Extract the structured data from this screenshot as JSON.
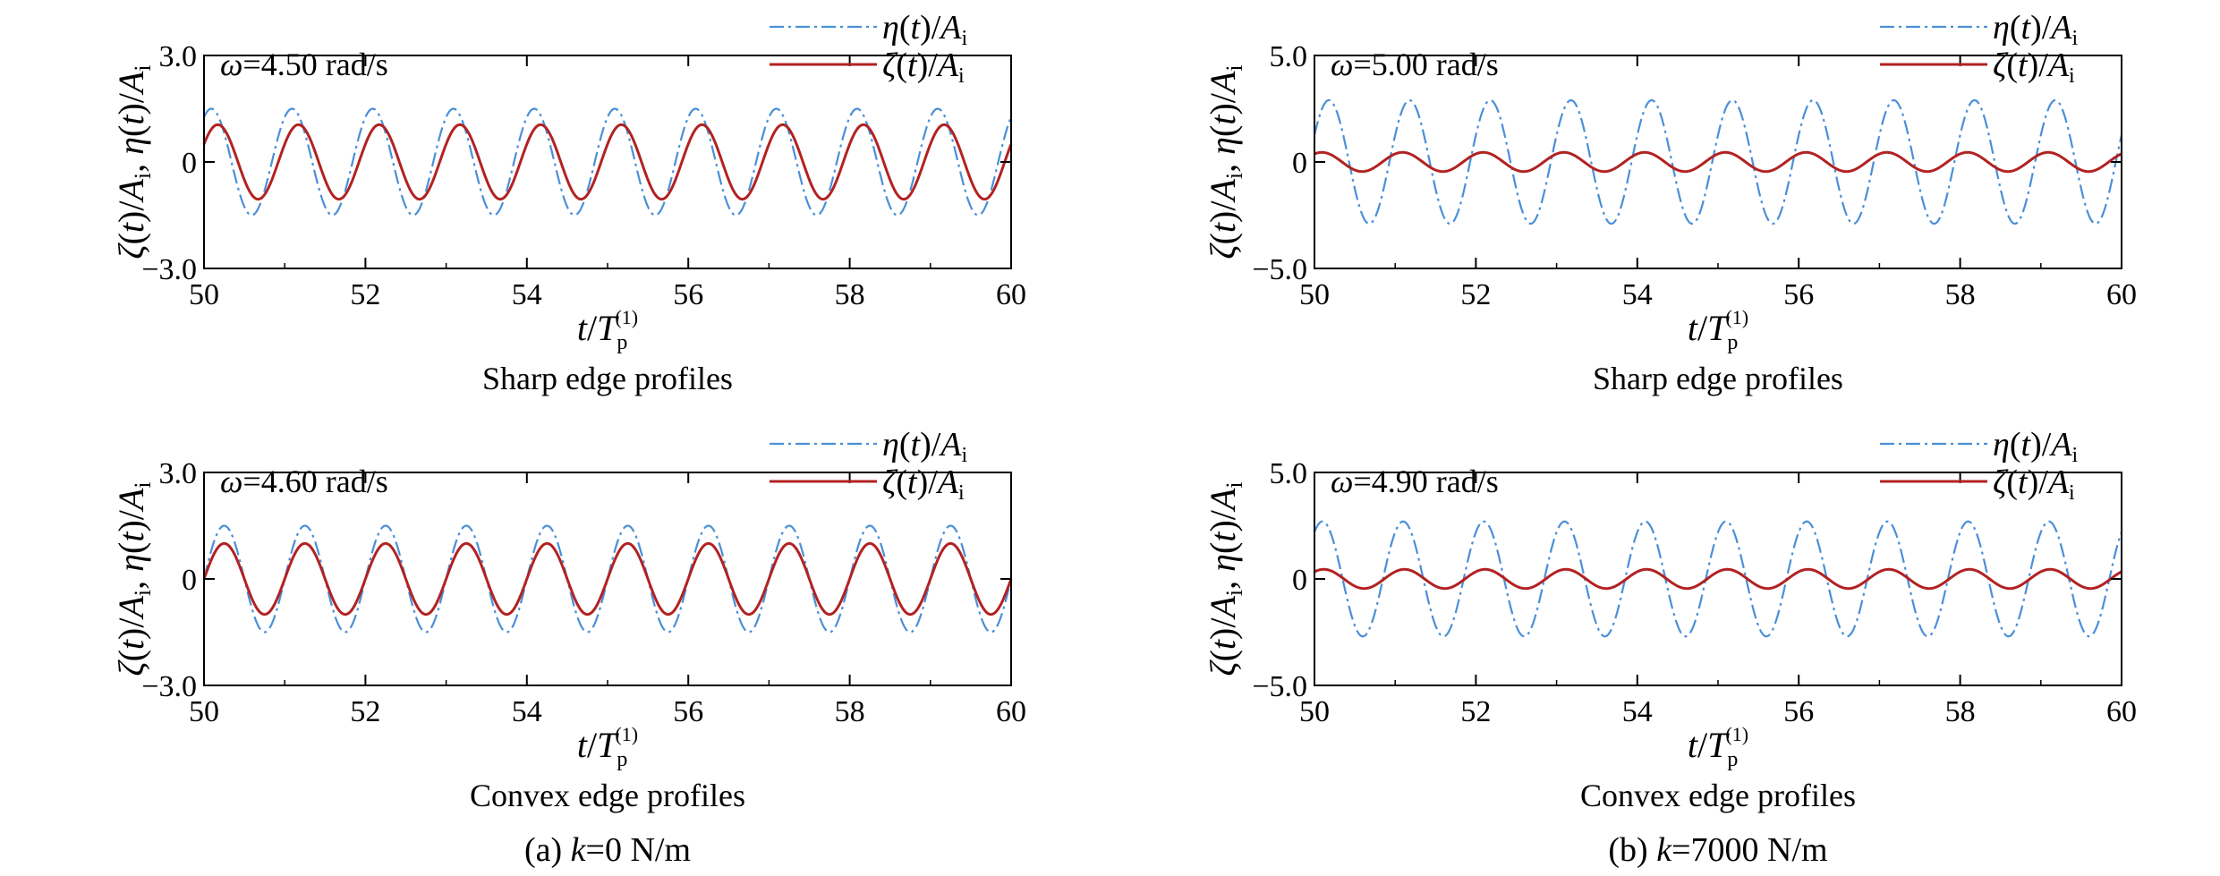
{
  "chart_data": [
    {
      "type": "line",
      "panel": "(a) top",
      "omega": 4.5,
      "annotation": "ω=4.50 rad/s",
      "subtitle": "Sharp edge profiles",
      "xlim": [
        50,
        60
      ],
      "ylim": [
        -3.0,
        3.0
      ],
      "xticks": [
        "50",
        "52",
        "54",
        "56",
        "58",
        "60"
      ],
      "yticks": [
        "3.0",
        "0",
        "−3.0"
      ],
      "xlabel": "t/Tp(1)",
      "ylabel": "ζ(t)/Ai, η(t)/Ai",
      "series": [
        {
          "name": "η(t)/Ai",
          "style": "dash-dot",
          "color": "#4a8fd8",
          "amplitude": 1.5,
          "phase_at_50": 1.0
        },
        {
          "name": "ζ(t)/Ai",
          "style": "solid",
          "color": "#b22222",
          "amplitude": 1.05,
          "phase_at_50": 0.5
        }
      ]
    },
    {
      "type": "line",
      "panel": "(b) top",
      "omega": 5.0,
      "annotation": "ω=5.00 rad/s",
      "subtitle": "Sharp edge profiles",
      "xlim": [
        50,
        60
      ],
      "ylim": [
        -5.0,
        5.0
      ],
      "xticks": [
        "50",
        "52",
        "54",
        "56",
        "58",
        "60"
      ],
      "yticks": [
        "5.0",
        "0",
        "−5.0"
      ],
      "xlabel": "t/Tp(1)",
      "ylabel": "ζ(t)/Ai, η(t)/Ai",
      "series": [
        {
          "name": "η(t)/Ai",
          "style": "dash-dot",
          "color": "#4a8fd8",
          "amplitude": 2.9,
          "phase_at_50": 0.45
        },
        {
          "name": "ζ(t)/Ai",
          "style": "solid",
          "color": "#b22222",
          "amplitude": 0.45,
          "phase_at_50": 1.0
        }
      ]
    },
    {
      "type": "line",
      "panel": "(a) bottom",
      "omega": 4.6,
      "annotation": "ω=4.60 rad/s",
      "subtitle": "Convex edge profiles",
      "xlim": [
        50,
        60
      ],
      "ylim": [
        -3.0,
        3.0
      ],
      "xticks": [
        "50",
        "52",
        "54",
        "56",
        "58",
        "60"
      ],
      "yticks": [
        "3.0",
        "0",
        "−3.0"
      ],
      "xlabel": "t/Tp(1)",
      "ylabel": "ζ(t)/Ai, η(t)/Ai",
      "series": [
        {
          "name": "η(t)/Ai",
          "style": "dash-dot",
          "color": "#4a8fd8",
          "amplitude": 1.5,
          "phase_at_50": 0.0
        },
        {
          "name": "ζ(t)/Ai",
          "style": "solid",
          "color": "#b22222",
          "amplitude": 1.0,
          "phase_at_50": 0.0
        }
      ]
    },
    {
      "type": "line",
      "panel": "(b) bottom",
      "omega": 4.9,
      "annotation": "ω=4.90 rad/s",
      "subtitle": "Convex edge profiles",
      "xlim": [
        50,
        60
      ],
      "ylim": [
        -5.0,
        5.0
      ],
      "xticks": [
        "50",
        "52",
        "54",
        "56",
        "58",
        "60"
      ],
      "yticks": [
        "5.0",
        "0",
        "−5.0"
      ],
      "xlabel": "t/Tp(1)",
      "ylabel": "ζ(t)/Ai, η(t)/Ai",
      "series": [
        {
          "name": "η(t)/Ai",
          "style": "dash-dot",
          "color": "#4a8fd8",
          "amplitude": 2.7,
          "phase_at_50": 0.95
        },
        {
          "name": "ζ(t)/Ai",
          "style": "solid",
          "color": "#b22222",
          "amplitude": 0.45,
          "phase_at_50": 0.85
        }
      ]
    }
  ],
  "captions": {
    "left": {
      "prefix": "(a) ",
      "var": "k",
      "suffix": "=0 N/m"
    },
    "right": {
      "prefix": "(b) ",
      "var": "k",
      "suffix": "=7000 N/m"
    }
  }
}
